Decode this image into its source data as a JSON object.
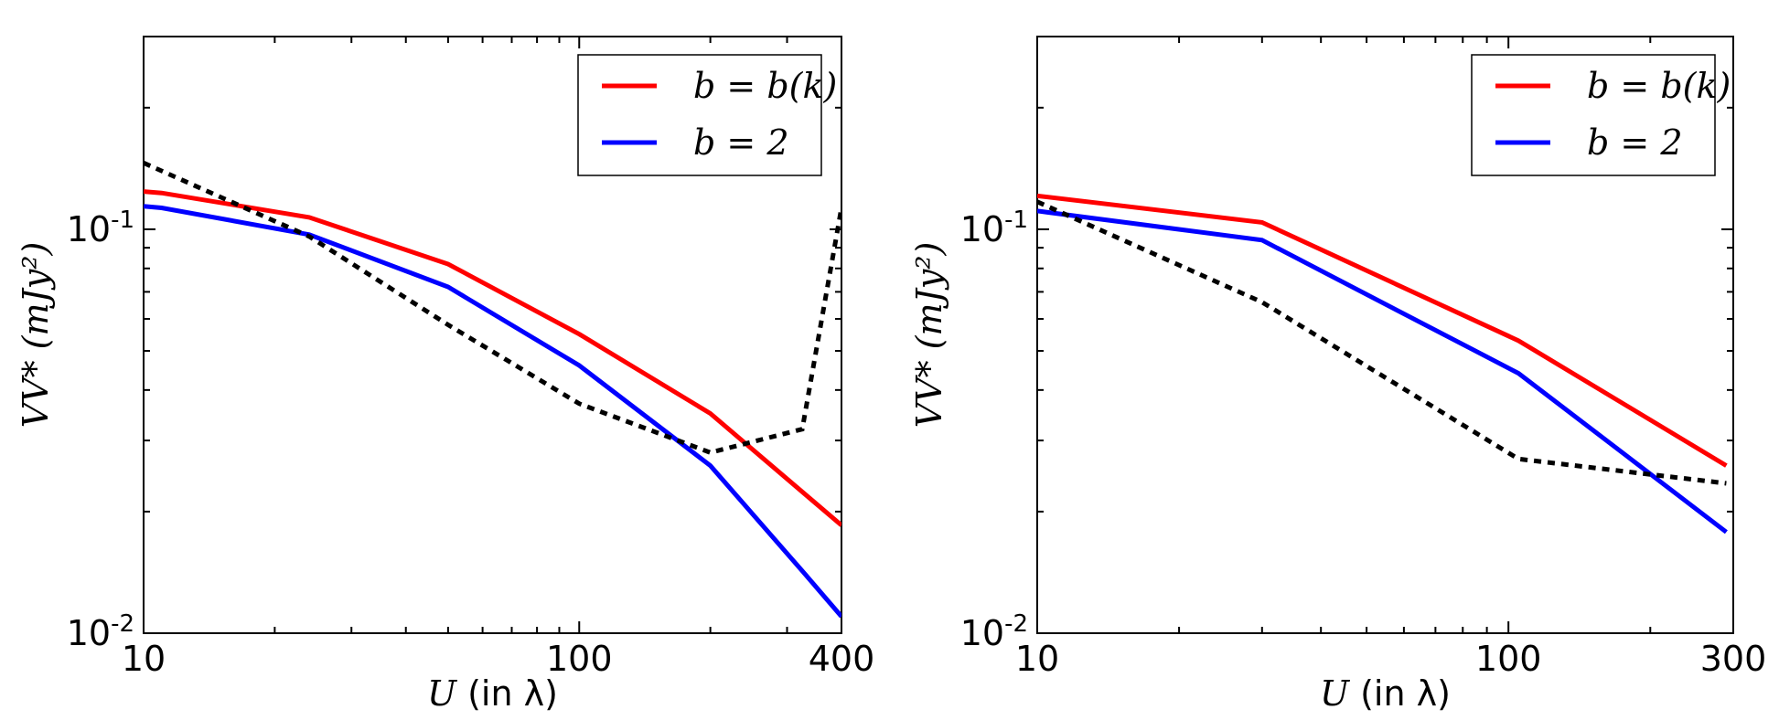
{
  "chart_data": [
    {
      "type": "line",
      "title": "",
      "xlabel_var": "U",
      "xlabel_rest": " (in λ)",
      "ylabel_var": "VV*",
      "ylabel_unit": " (mJy²)",
      "xscale": "log",
      "yscale": "log",
      "xlim": [
        10,
        400
      ],
      "ylim": [
        0.01,
        0.3
      ],
      "xtick_values": [
        10,
        100,
        400
      ],
      "xtick_labels": [
        "10",
        "100",
        "400"
      ],
      "ytick_values": [
        0.01,
        0.1
      ],
      "ytick_base": [
        "10",
        "10"
      ],
      "ytick_exp": [
        "-2",
        "-1"
      ],
      "legend_position": "top-right",
      "series": [
        {
          "name": "b = b(k)",
          "color": "#ff0000",
          "style": "solid",
          "x": [
            10,
            11,
            24,
            50,
            100,
            200,
            400
          ],
          "y": [
            0.124,
            0.123,
            0.107,
            0.082,
            0.055,
            0.035,
            0.0185
          ]
        },
        {
          "name": "b = 2",
          "color": "#0000ff",
          "style": "solid",
          "x": [
            10,
            11,
            24,
            50,
            100,
            200,
            330,
            400
          ],
          "y": [
            0.114,
            0.113,
            0.097,
            0.072,
            0.046,
            0.026,
            0.014,
            0.011
          ]
        },
        {
          "name": "",
          "color": "#000000",
          "style": "dotted",
          "x": [
            10,
            24,
            50,
            100,
            200,
            325,
            400
          ],
          "y": [
            0.146,
            0.096,
            0.058,
            0.037,
            0.028,
            0.032,
            0.113
          ]
        }
      ]
    },
    {
      "type": "line",
      "title": "",
      "xlabel_var": "U",
      "xlabel_rest": " (in λ)",
      "ylabel_var": "VV*",
      "ylabel_unit": " (mJy²)",
      "xscale": "log",
      "yscale": "log",
      "xlim": [
        10,
        300
      ],
      "ylim": [
        0.01,
        0.3
      ],
      "xtick_values": [
        10,
        100,
        300
      ],
      "xtick_labels": [
        "10",
        "100",
        "300"
      ],
      "ytick_values": [
        0.01,
        0.1
      ],
      "ytick_base": [
        "10",
        "10"
      ],
      "ytick_exp": [
        "-2",
        "-1"
      ],
      "legend_position": "top-right",
      "series": [
        {
          "name": "b = b(k)",
          "color": "#ff0000",
          "style": "solid",
          "x": [
            10,
            30,
            105,
            290
          ],
          "y": [
            0.121,
            0.104,
            0.053,
            0.026
          ]
        },
        {
          "name": "b = 2",
          "color": "#0000ff",
          "style": "solid",
          "x": [
            10,
            30,
            105,
            290
          ],
          "y": [
            0.111,
            0.094,
            0.044,
            0.0178
          ]
        },
        {
          "name": "",
          "color": "#000000",
          "style": "dotted",
          "x": [
            10,
            30,
            105,
            290
          ],
          "y": [
            0.117,
            0.066,
            0.027,
            0.0235
          ]
        }
      ]
    }
  ]
}
